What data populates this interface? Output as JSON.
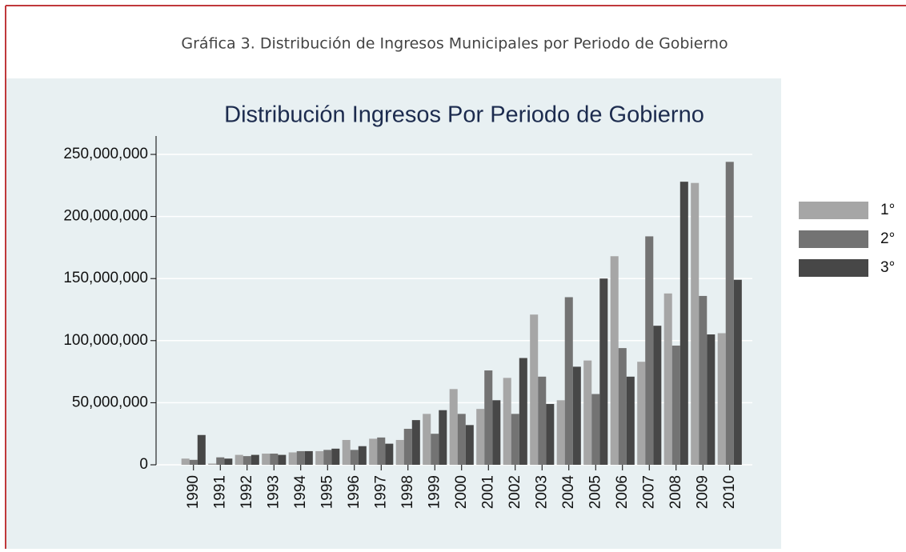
{
  "caption": "Gráfica 3. Distribución de Ingresos Municipales por Periodo de Gobierno",
  "chart_data": {
    "type": "bar",
    "title": "Distribución Ingresos Por Periodo de Gobierno",
    "categories": [
      "1990",
      "1991",
      "1992",
      "1993",
      "1994",
      "1995",
      "1996",
      "1997",
      "1998",
      "1999",
      "2000",
      "2001",
      "2002",
      "2003",
      "2004",
      "2005",
      "2006",
      "2007",
      "2008",
      "2009",
      "2010"
    ],
    "series": [
      {
        "name": "1°",
        "color": "#a6a6a6",
        "values": [
          5000000,
          1000000,
          8000000,
          9000000,
          10000000,
          11000000,
          20000000,
          21000000,
          20000000,
          41000000,
          61000000,
          45000000,
          70000000,
          121000000,
          52000000,
          84000000,
          168000000,
          83000000,
          138000000,
          227000000,
          106000000
        ]
      },
      {
        "name": "2°",
        "color": "#737373",
        "values": [
          4000000,
          6000000,
          7000000,
          9000000,
          11000000,
          12000000,
          12000000,
          22000000,
          29000000,
          25000000,
          41000000,
          76000000,
          41000000,
          71000000,
          135000000,
          57000000,
          94000000,
          184000000,
          96000000,
          136000000,
          244000000
        ]
      },
      {
        "name": "3°",
        "color": "#474747",
        "values": [
          24000000,
          5000000,
          8000000,
          8000000,
          11000000,
          13000000,
          15000000,
          17000000,
          36000000,
          44000000,
          32000000,
          52000000,
          86000000,
          49000000,
          79000000,
          150000000,
          71000000,
          112000000,
          228000000,
          105000000,
          149000000
        ]
      }
    ],
    "ylim": [
      0,
      260000000
    ],
    "yticks": [
      0,
      {
        "value": 50000000,
        "label": "50,000,000"
      },
      {
        "value": 100000000,
        "label": "100,000,000"
      },
      {
        "value": 150000000,
        "label": "150,000,000"
      },
      {
        "value": 200000000,
        "label": "200,000,000"
      },
      {
        "value": 250000000,
        "label": "250,000,000"
      }
    ],
    "grid": true,
    "legend": "right"
  }
}
